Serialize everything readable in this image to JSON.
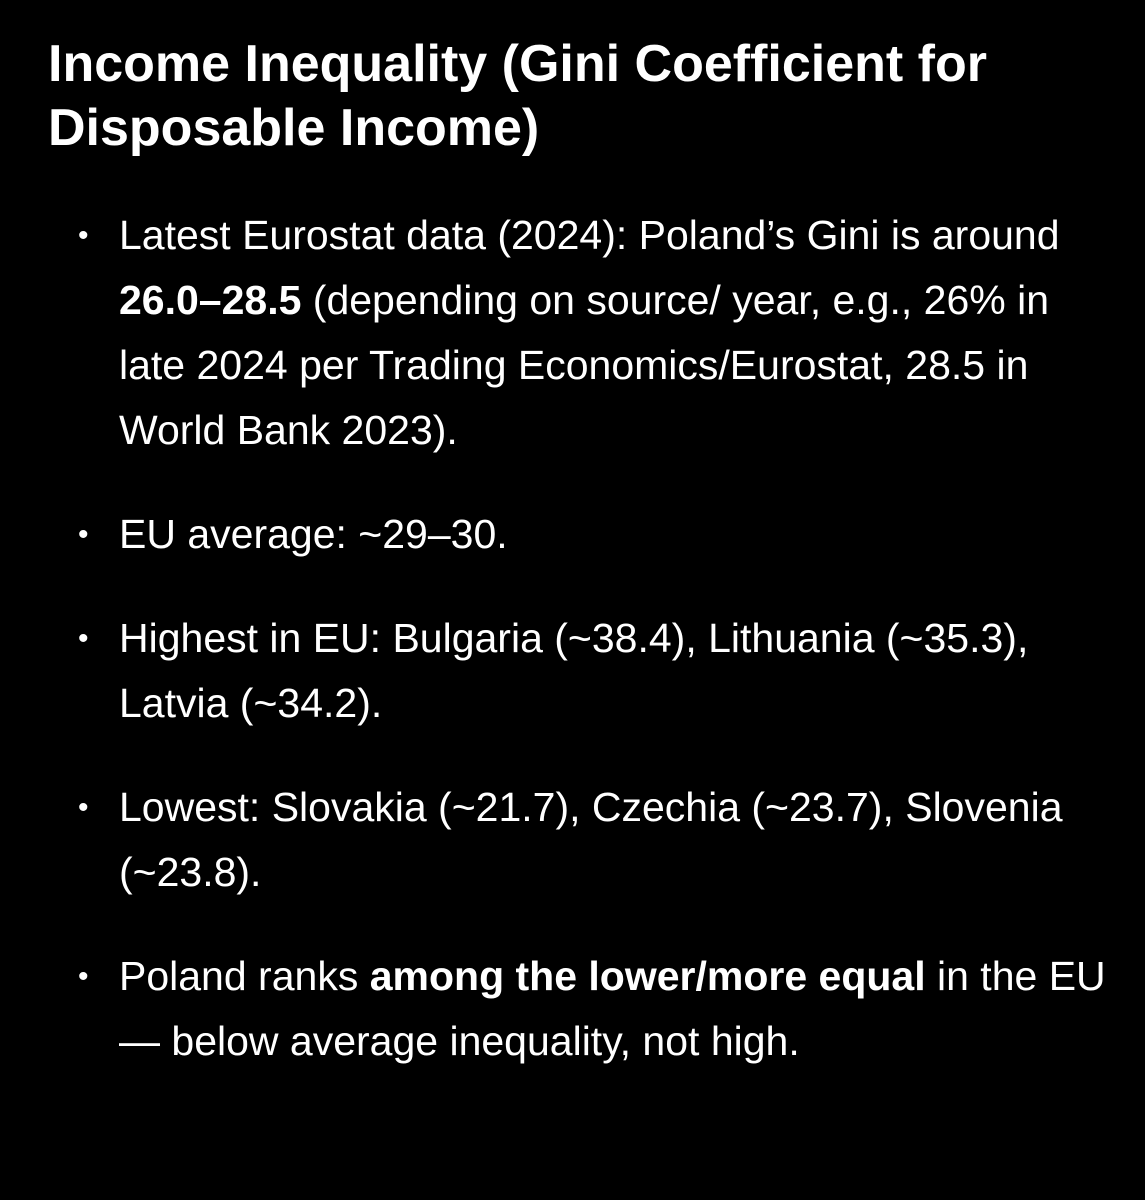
{
  "title": "Income Inequality (Gini Coefficient for Disposable Income)",
  "bullets": [
    {
      "before": "Latest Eurostat data (2024): Poland’s Gini is around ",
      "bold": "26.0–28.5",
      "after": " (depending on source/ year, e.g., 26% in late 2024 per Trading Economics/Eurostat, 28.5 in World Bank 2023)."
    },
    {
      "before": "EU average: ~29–30.",
      "bold": "",
      "after": ""
    },
    {
      "before": "Highest in EU: Bulgaria (~38.4), Lithuania (~35.3), Latvia (~34.2).",
      "bold": "",
      "after": ""
    },
    {
      "before": "Lowest: Slovakia (~21.7), Czechia (~23.7), Slovenia (~23.8).",
      "bold": "",
      "after": ""
    },
    {
      "before": "Poland ranks ",
      "bold": "among the lower/more equal",
      "after": " in the EU — below average inequality, not high."
    }
  ],
  "bullet_glyph": "•"
}
